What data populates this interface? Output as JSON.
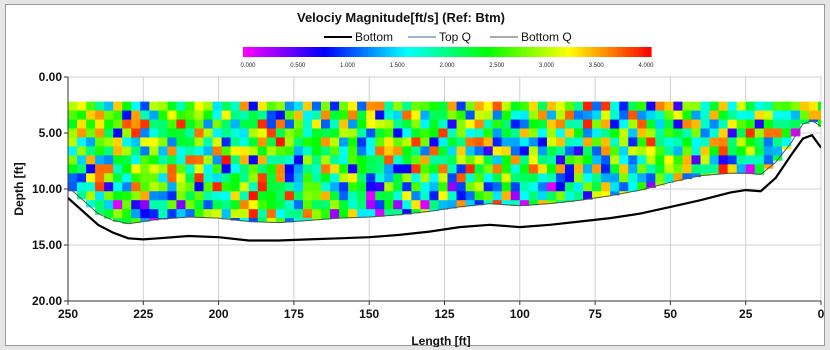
{
  "chart_data": {
    "type": "heatmap",
    "title": "Velociy Magnitude[ft/s] (Ref: Btm)",
    "legend": [
      {
        "name": "Bottom",
        "color": "#000000"
      },
      {
        "name": "Top Q",
        "color": "#3a6ea5"
      },
      {
        "name": "Bottom Q",
        "color": "#555555"
      }
    ],
    "colorbar": {
      "ticks": [
        "0.000",
        "0.500",
        "1.000",
        "1.500",
        "2.000",
        "2.500",
        "3.000",
        "3.500",
        "4.000"
      ],
      "range": [
        0,
        4
      ],
      "colors": [
        "#ff00ff",
        "#0000ff",
        "#00ffff",
        "#00ff00",
        "#ffff00",
        "#ff0000"
      ]
    },
    "xlabel": "Length [ft]",
    "ylabel": "Depth [ft]",
    "xlim": [
      250,
      0
    ],
    "ylim": [
      20,
      0
    ],
    "x_ticks": [
      "250",
      "225",
      "200",
      "175",
      "150",
      "125",
      "100",
      "75",
      "50",
      "25",
      "0"
    ],
    "y_ticks": [
      "0.00",
      "5.00",
      "10.00",
      "15.00",
      "20.00"
    ],
    "grid": true,
    "measured_top_depth": 2.2,
    "bottom_profile": {
      "x": [
        250,
        245,
        240,
        235,
        230,
        225,
        220,
        210,
        200,
        190,
        180,
        170,
        160,
        150,
        140,
        130,
        120,
        110,
        100,
        90,
        80,
        70,
        60,
        50,
        40,
        30,
        25,
        20,
        15,
        10,
        6,
        3,
        0
      ],
      "depth": [
        10.8,
        12.0,
        13.2,
        13.9,
        14.4,
        14.5,
        14.4,
        14.2,
        14.3,
        14.6,
        14.6,
        14.5,
        14.4,
        14.3,
        14.1,
        13.8,
        13.4,
        13.2,
        13.4,
        13.2,
        12.9,
        12.6,
        12.2,
        11.6,
        11.0,
        10.3,
        10.1,
        10.2,
        9.0,
        7.0,
        5.5,
        5.2,
        6.3
      ]
    },
    "bottom_q_profile": {
      "x": [
        250,
        245,
        240,
        235,
        230,
        225,
        220,
        210,
        200,
        190,
        180,
        170,
        160,
        150,
        140,
        130,
        120,
        110,
        100,
        90,
        80,
        70,
        60,
        50,
        40,
        30,
        25,
        20,
        15,
        10,
        6,
        3,
        0
      ],
      "depth": [
        9.8,
        11.0,
        12.2,
        12.8,
        13.1,
        12.9,
        12.7,
        12.5,
        12.6,
        12.9,
        13.0,
        12.8,
        12.6,
        12.5,
        12.3,
        12.0,
        11.6,
        11.3,
        11.5,
        11.3,
        11.0,
        10.6,
        10.1,
        9.4,
        8.8,
        8.6,
        8.6,
        8.7,
        7.6,
        5.9,
        4.2,
        3.9,
        4.4
      ]
    },
    "cell_size": {
      "dx": 3.0,
      "dz": 0.8
    },
    "velocity_note": "mean ~2.4 ft/s, range 0.1-3.9 ft/s"
  }
}
